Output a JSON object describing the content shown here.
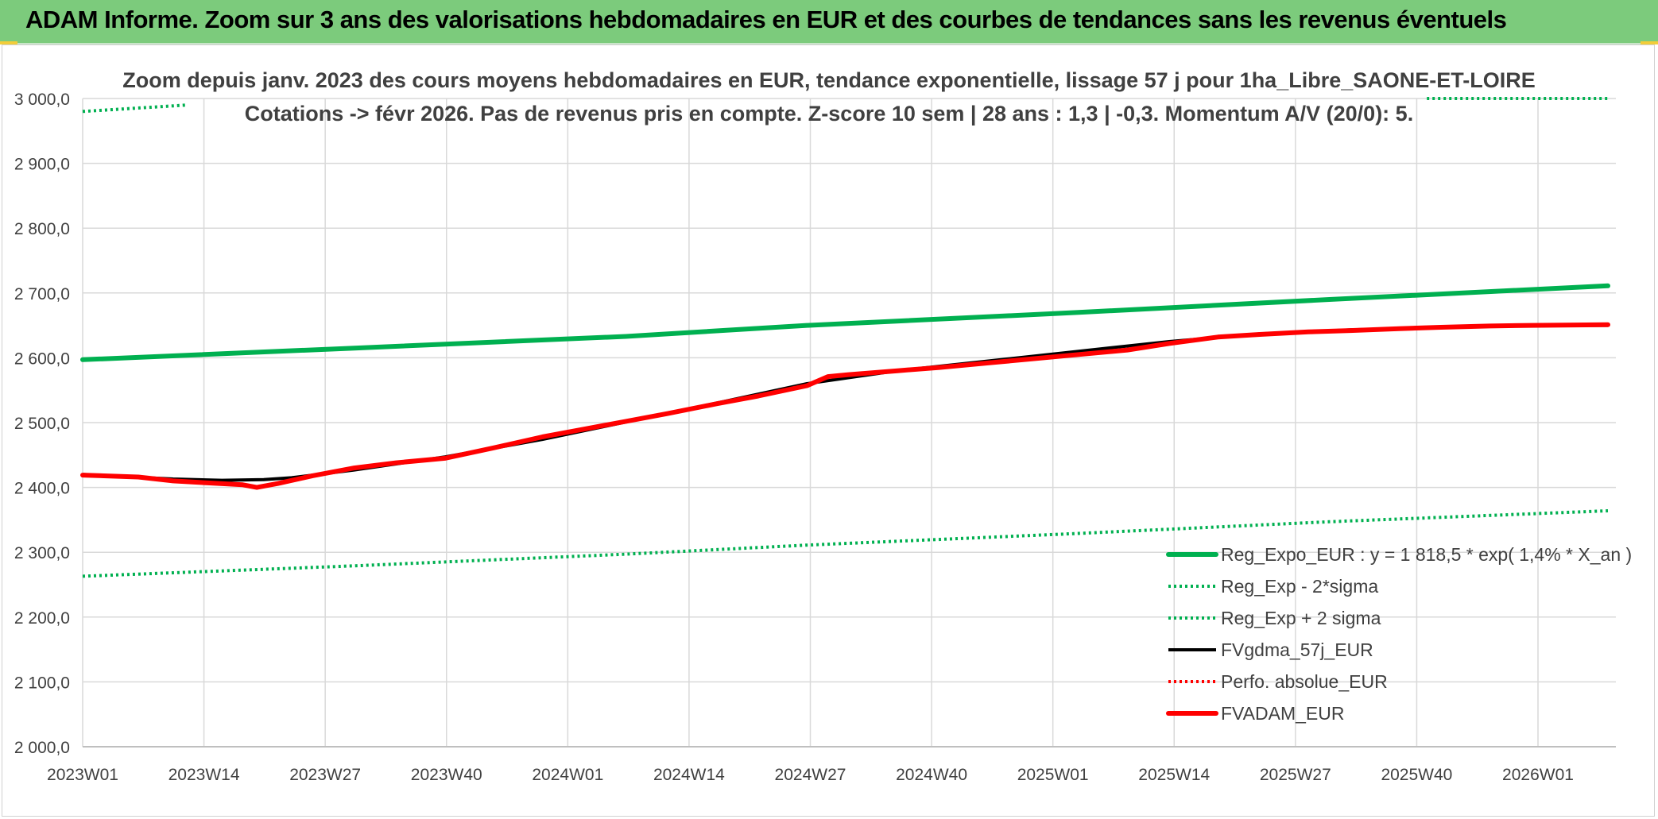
{
  "banner": {
    "title": "ADAM Informe. Zoom sur 3 ans des valorisations hebdomadaires en EUR et des courbes de tendances sans les revenus éventuels"
  },
  "chart_data": {
    "type": "line",
    "title_line1": "Zoom depuis janv. 2023 des cours moyens hebdomadaires en EUR, tendance exponentielle, lissage 57 j pour 1ha_Libre_SAONE-ET-LOIRE",
    "title_line2": "Cotations -> févr 2026. Pas de revenus pris en compte. Z-score 10 sem | 28 ans : 1,3 | -0,3. Momentum A/V (20/0): 5.",
    "x_tick_labels": [
      "2023W01",
      "2023W14",
      "2023W27",
      "2023W40",
      "2024W01",
      "2024W14",
      "2024W27",
      "2024W40",
      "2025W01",
      "2025W14",
      "2025W27",
      "2025W40",
      "2026W01"
    ],
    "x_range_weeks": [
      0,
      165
    ],
    "ylim": [
      2000,
      3000
    ],
    "y_ticks": [
      2000,
      2100,
      2200,
      2300,
      2400,
      2500,
      2600,
      2700,
      2800,
      2900,
      3000
    ],
    "y_tick_labels": [
      "2 000,0",
      "2 100,0",
      "2 200,0",
      "2 300,0",
      "2 400,0",
      "2 500,0",
      "2 600,0",
      "2 700,0",
      "2 800,0",
      "2 900,0",
      "3 000,0"
    ],
    "grid": true,
    "legend_position": "bottom-right",
    "series": [
      {
        "name": "Reg_Expo_EUR : y = 1 818,5 * exp( 1,4% *  X_an )",
        "color": "#00b050",
        "style": "solid-thick",
        "points": [
          [
            0,
            2597
          ],
          [
            39,
            2615
          ],
          [
            78,
            2633
          ],
          [
            104,
            2650
          ],
          [
            143,
            2670
          ],
          [
            179,
            2690
          ],
          [
            219,
            2711
          ]
        ]
      },
      {
        "name": "Reg_Exp - 2*sigma",
        "color": "#00b050",
        "style": "dotted",
        "points": [
          [
            0,
            2263
          ],
          [
            39,
            2279
          ],
          [
            78,
            2297
          ],
          [
            104,
            2311
          ],
          [
            143,
            2329
          ],
          [
            179,
            2347
          ],
          [
            219,
            2364
          ]
        ]
      },
      {
        "name": "Reg_Exp + 2 sigma",
        "color": "#00b050",
        "style": "dotted",
        "points": [
          [
            0,
            2980
          ],
          [
            15,
            2990
          ]
        ],
        "points_b": [
          [
            193,
            3000
          ],
          [
            219,
            3000
          ]
        ]
      },
      {
        "name": "FVgdma_57j_EUR",
        "color": "#000000",
        "style": "solid",
        "points": [
          [
            0,
            2420
          ],
          [
            13,
            2413
          ],
          [
            20,
            2411
          ],
          [
            26,
            2412
          ],
          [
            30,
            2415
          ],
          [
            39,
            2427
          ],
          [
            52,
            2447
          ],
          [
            66,
            2474
          ],
          [
            78,
            2501
          ],
          [
            91,
            2530
          ],
          [
            104,
            2560
          ],
          [
            117,
            2580
          ],
          [
            130,
            2595
          ],
          [
            143,
            2610
          ],
          [
            156,
            2625
          ],
          [
            169,
            2637
          ],
          [
            182,
            2643
          ],
          [
            195,
            2647
          ],
          [
            208,
            2650
          ],
          [
            219,
            2650
          ]
        ]
      },
      {
        "name": "Perfo. absolue_EUR",
        "color": "#ff0000",
        "style": "dotted",
        "points": []
      },
      {
        "name": "FVADAM_EUR",
        "color": "#ff0000",
        "style": "solid-thick",
        "points": [
          [
            0,
            2419
          ],
          [
            8,
            2416
          ],
          [
            13,
            2410
          ],
          [
            18,
            2407
          ],
          [
            23,
            2404
          ],
          [
            25,
            2400
          ],
          [
            28,
            2406
          ],
          [
            33,
            2418
          ],
          [
            39,
            2430
          ],
          [
            45,
            2438
          ],
          [
            52,
            2445
          ],
          [
            59,
            2461
          ],
          [
            66,
            2478
          ],
          [
            72,
            2490
          ],
          [
            78,
            2502
          ],
          [
            84,
            2514
          ],
          [
            91,
            2529
          ],
          [
            97,
            2541
          ],
          [
            104,
            2557
          ],
          [
            107,
            2571
          ],
          [
            110,
            2574
          ],
          [
            117,
            2580
          ],
          [
            123,
            2585
          ],
          [
            130,
            2592
          ],
          [
            136,
            2598
          ],
          [
            143,
            2605
          ],
          [
            150,
            2612
          ],
          [
            156,
            2622
          ],
          [
            163,
            2632
          ],
          [
            169,
            2636
          ],
          [
            176,
            2640
          ],
          [
            182,
            2642
          ],
          [
            189,
            2645
          ],
          [
            195,
            2647
          ],
          [
            202,
            2649
          ],
          [
            208,
            2650
          ],
          [
            219,
            2651
          ]
        ]
      }
    ]
  }
}
